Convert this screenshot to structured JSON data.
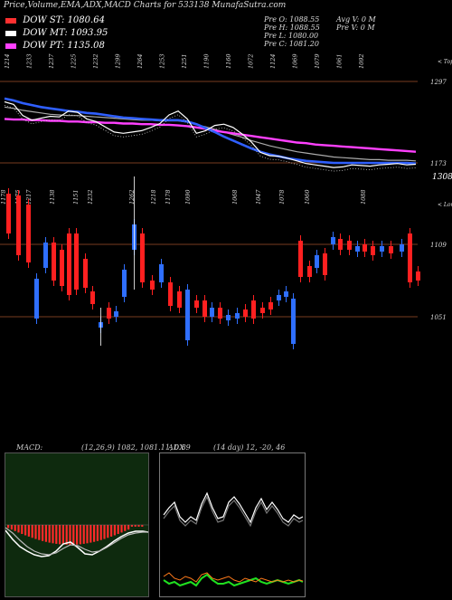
{
  "header": {
    "title": "Price,Volume,EMA,ADX,MACD Charts for 533138  MunafaSutra.com"
  },
  "legend": [
    {
      "label": "DOW ST: 1080.64",
      "color": "#ff3030"
    },
    {
      "label": "DOW MT: 1093.95",
      "color": "#ffffff"
    },
    {
      "label": "DOW PT: 1135.08",
      "color": "#ff40ff"
    }
  ],
  "info": {
    "col1": [
      "Pre  O: 1088.55",
      "Pre  H: 1088.55",
      "Pre  L: 1080.00",
      "Pre  C: 1081.20"
    ],
    "col2": [
      "Avg V: 0  M",
      "Pre  V: 0  M"
    ]
  },
  "chart_data": [
    {
      "type": "line",
      "title": "",
      "top_numbers": [
        "1214",
        "1233",
        "1237",
        "1225",
        "1232",
        "1299",
        "1264",
        "1253",
        "1251",
        "1190",
        "1160",
        "1072",
        "1124",
        "1069",
        "1079",
        "1061",
        "1092"
      ],
      "right_label": "Tops",
      "levels": [
        1297,
        1173
      ],
      "current_value": "1308.65",
      "series": [
        {
          "color": "#ffffff",
          "values": [
            1266,
            1262,
            1245,
            1238,
            1241,
            1244,
            1243,
            1252,
            1250,
            1240,
            1236,
            1228,
            1220,
            1218,
            1220,
            1222,
            1227,
            1233,
            1246,
            1252,
            1240,
            1218,
            1222,
            1230,
            1232,
            1227,
            1217,
            1205,
            1189,
            1184,
            1183,
            1180,
            1176,
            1172,
            1170,
            1168,
            1166,
            1167,
            1170,
            1169,
            1168,
            1170,
            1171,
            1172,
            1170,
            1171
          ]
        },
        {
          "color": "#2f5fff",
          "values": [
            1271,
            1268,
            1264,
            1261,
            1258,
            1256,
            1254,
            1252,
            1251,
            1249,
            1248,
            1246,
            1244,
            1242,
            1241,
            1240,
            1239,
            1238,
            1238,
            1238,
            1236,
            1232,
            1226,
            1220,
            1213,
            1207,
            1201,
            1195,
            1190,
            1186,
            1183,
            1180,
            1178,
            1176,
            1175,
            1174,
            1173,
            1173,
            1173,
            1173,
            1173,
            1173,
            1173,
            1173,
            1173,
            1172
          ]
        },
        {
          "color": "#ff40ff",
          "values": [
            1240,
            1239,
            1239,
            1238,
            1238,
            1237,
            1237,
            1236,
            1236,
            1235,
            1235,
            1234,
            1234,
            1233,
            1233,
            1232,
            1232,
            1231,
            1231,
            1230,
            1229,
            1227,
            1225,
            1222,
            1220,
            1218,
            1216,
            1214,
            1212,
            1210,
            1208,
            1206,
            1204,
            1203,
            1201,
            1200,
            1199,
            1198,
            1197,
            1196,
            1195,
            1194,
            1193,
            1192,
            1191,
            1190
          ]
        },
        {
          "color": "#aaaaaa",
          "values": [
            1258,
            1256,
            1253,
            1251,
            1249,
            1247,
            1246,
            1245,
            1245,
            1244,
            1243,
            1242,
            1241,
            1240,
            1239,
            1238,
            1238,
            1237,
            1237,
            1237,
            1235,
            1231,
            1228,
            1224,
            1220,
            1216,
            1212,
            1207,
            1203,
            1199,
            1196,
            1193,
            1190,
            1188,
            1186,
            1184,
            1182,
            1181,
            1180,
            1179,
            1178,
            1178,
            1177,
            1177,
            1177,
            1176
          ]
        }
      ]
    },
    {
      "type": "candlestick",
      "title": "",
      "bottom_numbers": [
        "1178",
        "1175",
        "1217",
        "1138",
        "1151",
        "1232",
        "1262",
        "1218",
        "1178",
        "1090",
        "1068",
        "1047",
        "1078",
        "1060",
        "1088"
      ],
      "right_label": "Lows",
      "levels": [
        1109,
        1051
      ],
      "candles": [
        {
          "x": 7,
          "o": 214,
          "c": 258,
          "up": false
        },
        {
          "x": 18,
          "o": 216,
          "c": 282,
          "up": false
        },
        {
          "x": 29,
          "o": 226,
          "c": 290,
          "up": false
        },
        {
          "x": 38,
          "o": 308,
          "c": 352,
          "up": true
        },
        {
          "x": 48,
          "o": 268,
          "c": 296,
          "up": true
        },
        {
          "x": 57,
          "o": 268,
          "c": 310,
          "up": false
        },
        {
          "x": 66,
          "o": 276,
          "c": 316,
          "up": false
        },
        {
          "x": 74,
          "o": 258,
          "c": 326,
          "up": false
        },
        {
          "x": 82,
          "o": 258,
          "c": 320,
          "up": false
        },
        {
          "x": 92,
          "o": 286,
          "c": 318,
          "up": false
        },
        {
          "x": 100,
          "o": 322,
          "c": 336,
          "up": false
        },
        {
          "x": 109,
          "o": 356,
          "c": 362,
          "up": true
        },
        {
          "x": 118,
          "o": 340,
          "c": 352,
          "up": false
        },
        {
          "x": 126,
          "o": 344,
          "c": 350,
          "up": true
        },
        {
          "x": 135,
          "o": 298,
          "c": 328,
          "up": true
        },
        {
          "x": 146,
          "o": 248,
          "c": 276,
          "up": true
        },
        {
          "x": 155,
          "o": 258,
          "c": 312,
          "up": false
        },
        {
          "x": 166,
          "o": 310,
          "c": 320,
          "up": false
        },
        {
          "x": 176,
          "o": 292,
          "c": 312,
          "up": true
        },
        {
          "x": 186,
          "o": 312,
          "c": 338,
          "up": false
        },
        {
          "x": 196,
          "o": 322,
          "c": 340,
          "up": false
        },
        {
          "x": 205,
          "o": 320,
          "c": 376,
          "up": true
        },
        {
          "x": 215,
          "o": 332,
          "c": 340,
          "up": false
        },
        {
          "x": 224,
          "o": 332,
          "c": 350,
          "up": false
        },
        {
          "x": 232,
          "o": 340,
          "c": 350,
          "up": true
        },
        {
          "x": 241,
          "o": 340,
          "c": 352,
          "up": false
        },
        {
          "x": 250,
          "o": 348,
          "c": 354,
          "up": true
        },
        {
          "x": 260,
          "o": 346,
          "c": 352,
          "up": true
        },
        {
          "x": 269,
          "o": 342,
          "c": 350,
          "up": false
        },
        {
          "x": 278,
          "o": 332,
          "c": 352,
          "up": false
        },
        {
          "x": 288,
          "o": 340,
          "c": 346,
          "up": false
        },
        {
          "x": 297,
          "o": 334,
          "c": 342,
          "up": false
        },
        {
          "x": 306,
          "o": 326,
          "c": 332,
          "up": true
        },
        {
          "x": 314,
          "o": 322,
          "c": 328,
          "up": true
        },
        {
          "x": 322,
          "o": 330,
          "c": 380,
          "up": true
        },
        {
          "x": 330,
          "o": 266,
          "c": 306,
          "up": false
        },
        {
          "x": 340,
          "o": 294,
          "c": 306,
          "up": false
        },
        {
          "x": 348,
          "o": 282,
          "c": 296,
          "up": true
        },
        {
          "x": 357,
          "o": 280,
          "c": 304,
          "up": false
        },
        {
          "x": 366,
          "o": 262,
          "c": 270,
          "up": true
        },
        {
          "x": 374,
          "o": 264,
          "c": 276,
          "up": false
        },
        {
          "x": 384,
          "o": 266,
          "c": 276,
          "up": false
        },
        {
          "x": 393,
          "o": 272,
          "c": 278,
          "up": true
        },
        {
          "x": 401,
          "o": 270,
          "c": 278,
          "up": false
        },
        {
          "x": 410,
          "o": 272,
          "c": 282,
          "up": false
        },
        {
          "x": 420,
          "o": 272,
          "c": 278,
          "up": true
        },
        {
          "x": 430,
          "o": 272,
          "c": 280,
          "up": false
        },
        {
          "x": 442,
          "o": 270,
          "c": 278,
          "up": true
        },
        {
          "x": 451,
          "o": 258,
          "c": 312,
          "up": false
        },
        {
          "x": 460,
          "o": 300,
          "c": 310,
          "up": false
        }
      ]
    }
  ],
  "macd": {
    "label": "MACD:",
    "values": "(12,26,9) 1082, 1081.11, 0.89"
  },
  "adx": {
    "label": "ADX",
    "values": "(14 day) 12, -20, 46"
  },
  "labels": {
    "lows_suffix": "< Lows",
    "tops_suffix": "< Tops"
  }
}
